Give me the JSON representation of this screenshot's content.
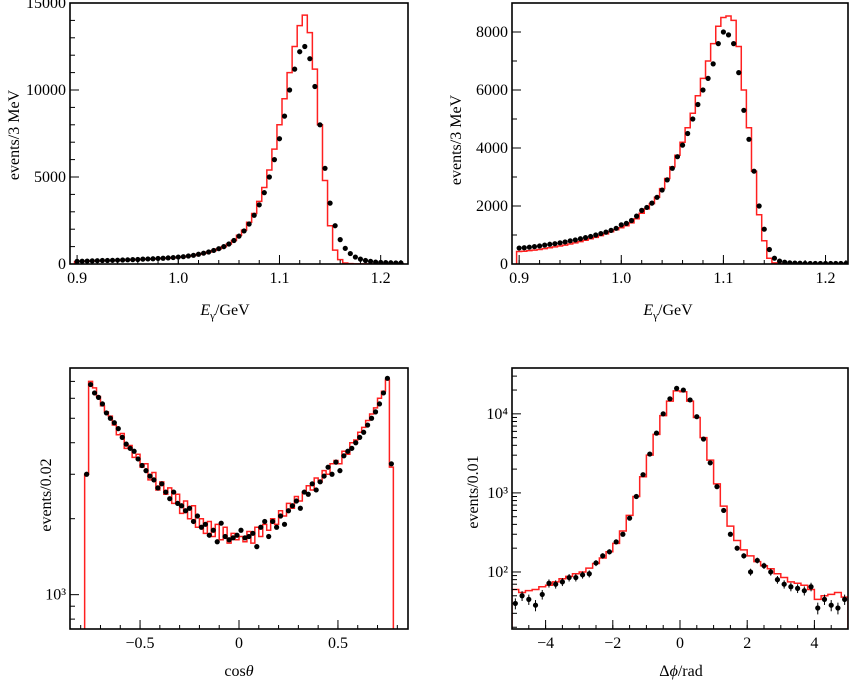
{
  "colors": {
    "data_points": "#000000",
    "mc_histogram": "#ff2020",
    "frame": "#000000"
  },
  "chart_data": [
    {
      "type": "histogram",
      "xlabel": {
        "symbol": "E",
        "subscript": "γ",
        "unit": "/GeV"
      },
      "ylabel": "events/3 MeV",
      "xlim": [
        0.893,
        1.227
      ],
      "ylim": [
        0,
        15000
      ],
      "log": false,
      "x_ticks": [
        {
          "v": 0.9,
          "label": "0.9"
        },
        {
          "v": 1.0,
          "label": "1.0"
        },
        {
          "v": 1.1,
          "label": "1.1"
        },
        {
          "v": 1.2,
          "label": "1.2"
        }
      ],
      "y_ticks": [
        {
          "v": 0,
          "label": "0"
        },
        {
          "v": 5000,
          "label": "5000"
        },
        {
          "v": 10000,
          "label": "10000"
        },
        {
          "v": 15000,
          "label": "15000"
        }
      ],
      "x": [
        0.9,
        0.905,
        0.91,
        0.915,
        0.92,
        0.925,
        0.93,
        0.935,
        0.94,
        0.945,
        0.95,
        0.955,
        0.96,
        0.965,
        0.97,
        0.975,
        0.98,
        0.985,
        0.99,
        0.995,
        1.0,
        1.005,
        1.01,
        1.015,
        1.02,
        1.025,
        1.03,
        1.035,
        1.04,
        1.045,
        1.05,
        1.055,
        1.06,
        1.065,
        1.07,
        1.075,
        1.08,
        1.085,
        1.09,
        1.095,
        1.1,
        1.105,
        1.11,
        1.115,
        1.12,
        1.125,
        1.13,
        1.135,
        1.14,
        1.145,
        1.15,
        1.155,
        1.16,
        1.165,
        1.17,
        1.175,
        1.18,
        1.185,
        1.19,
        1.195,
        1.2,
        1.205,
        1.21,
        1.215,
        1.22
      ],
      "series": [
        {
          "style": "points",
          "values": [
            150,
            160,
            170,
            180,
            190,
            200,
            200,
            210,
            220,
            230,
            240,
            250,
            260,
            280,
            290,
            300,
            320,
            330,
            350,
            370,
            400,
            420,
            460,
            500,
            560,
            620,
            690,
            780,
            880,
            1000,
            1150,
            1350,
            1600,
            1900,
            2300,
            2800,
            3400,
            4100,
            5000,
            6000,
            7200,
            8500,
            10000,
            11200,
            12200,
            12500,
            11800,
            10200,
            8000,
            5500,
            3500,
            2200,
            1400,
            900,
            600,
            400,
            280,
            200,
            150,
            110,
            90,
            80,
            70,
            60,
            60
          ]
        },
        {
          "style": "step",
          "values": [
            140,
            150,
            160,
            170,
            180,
            190,
            195,
            200,
            210,
            220,
            230,
            240,
            250,
            265,
            280,
            290,
            305,
            320,
            340,
            360,
            390,
            410,
            450,
            490,
            550,
            610,
            680,
            770,
            870,
            990,
            1150,
            1350,
            1650,
            1950,
            2400,
            2900,
            3600,
            4400,
            5400,
            6600,
            8000,
            9500,
            11000,
            12500,
            13700,
            14300,
            13300,
            11200,
            8000,
            4800,
            2200,
            800,
            250,
            60,
            20,
            10,
            5,
            5,
            5,
            5,
            5,
            5,
            5,
            5,
            5
          ]
        }
      ]
    },
    {
      "type": "histogram",
      "xlabel": {
        "symbol": "E",
        "subscript": "γ",
        "unit": "/GeV"
      },
      "ylabel": "events/3 MeV",
      "xlim": [
        0.893,
        1.222
      ],
      "ylim": [
        0,
        9000
      ],
      "log": false,
      "x_ticks": [
        {
          "v": 0.9,
          "label": "0.9"
        },
        {
          "v": 1.0,
          "label": "1.0"
        },
        {
          "v": 1.1,
          "label": "1.1"
        },
        {
          "v": 1.2,
          "label": "1.2"
        }
      ],
      "y_ticks": [
        {
          "v": 0,
          "label": "0"
        },
        {
          "v": 2000,
          "label": "2000"
        },
        {
          "v": 4000,
          "label": "4000"
        },
        {
          "v": 6000,
          "label": "6000"
        },
        {
          "v": 8000,
          "label": "8000"
        }
      ],
      "x": [
        0.9,
        0.905,
        0.91,
        0.915,
        0.92,
        0.925,
        0.93,
        0.935,
        0.94,
        0.945,
        0.95,
        0.955,
        0.96,
        0.965,
        0.97,
        0.975,
        0.98,
        0.985,
        0.99,
        0.995,
        1.0,
        1.005,
        1.01,
        1.015,
        1.02,
        1.025,
        1.03,
        1.035,
        1.04,
        1.045,
        1.05,
        1.055,
        1.06,
        1.065,
        1.07,
        1.075,
        1.08,
        1.085,
        1.09,
        1.095,
        1.1,
        1.105,
        1.11,
        1.115,
        1.12,
        1.125,
        1.13,
        1.135,
        1.14,
        1.145,
        1.15,
        1.155,
        1.16,
        1.165,
        1.17,
        1.175,
        1.18,
        1.185,
        1.19,
        1.195,
        1.2,
        1.205,
        1.21,
        1.215,
        1.22
      ],
      "series": [
        {
          "style": "points",
          "values": [
            550,
            560,
            580,
            600,
            620,
            650,
            680,
            700,
            730,
            760,
            800,
            830,
            870,
            910,
            950,
            1000,
            1050,
            1100,
            1160,
            1230,
            1350,
            1400,
            1500,
            1650,
            1850,
            1950,
            2100,
            2300,
            2550,
            2900,
            3300,
            3700,
            4100,
            4500,
            5000,
            5500,
            6000,
            6400,
            6900,
            7600,
            8000,
            7900,
            7600,
            6600,
            5300,
            4300,
            3200,
            2000,
            1200,
            500,
            200,
            100,
            60,
            40,
            30,
            25,
            20,
            20,
            20,
            20,
            20,
            20,
            20,
            20,
            20
          ]
        },
        {
          "style": "step",
          "values": [
            430,
            440,
            460,
            480,
            500,
            530,
            560,
            590,
            620,
            650,
            690,
            730,
            770,
            820,
            870,
            920,
            980,
            1040,
            1110,
            1180,
            1250,
            1320,
            1420,
            1560,
            1750,
            1900,
            2080,
            2300,
            2600,
            2950,
            3350,
            3750,
            4200,
            4700,
            5200,
            5800,
            6400,
            7000,
            7600,
            8200,
            8500,
            8550,
            8400,
            7500,
            6000,
            4700,
            3200,
            1700,
            800,
            200,
            40,
            10,
            0,
            0,
            0,
            0,
            0,
            0,
            0,
            0,
            0,
            0,
            0,
            0,
            0
          ]
        }
      ]
    },
    {
      "type": "histogram",
      "xlabel": {
        "prefix": "cos",
        "symbol": "θ"
      },
      "ylabel": "events/0.02",
      "xlim": [
        -0.854,
        0.854
      ],
      "ylim": [
        731,
        7910
      ],
      "log": true,
      "x_ticks": [
        {
          "v": -0.5,
          "label": "−0.5"
        },
        {
          "v": 0,
          "label": "0"
        },
        {
          "v": 0.5,
          "label": "0.5"
        }
      ],
      "y_ticks": [
        {
          "v": 1000,
          "label": "10³"
        }
      ],
      "x": [
        -0.77,
        -0.75,
        -0.73,
        -0.71,
        -0.69,
        -0.67,
        -0.65,
        -0.63,
        -0.61,
        -0.59,
        -0.57,
        -0.55,
        -0.53,
        -0.51,
        -0.49,
        -0.47,
        -0.45,
        -0.43,
        -0.41,
        -0.39,
        -0.37,
        -0.35,
        -0.33,
        -0.31,
        -0.29,
        -0.27,
        -0.25,
        -0.23,
        -0.21,
        -0.19,
        -0.17,
        -0.15,
        -0.13,
        -0.11,
        -0.09,
        -0.07,
        -0.05,
        -0.03,
        -0.01,
        0.01,
        0.03,
        0.05,
        0.07,
        0.09,
        0.11,
        0.13,
        0.15,
        0.17,
        0.19,
        0.21,
        0.23,
        0.25,
        0.27,
        0.29,
        0.31,
        0.33,
        0.35,
        0.37,
        0.39,
        0.41,
        0.43,
        0.45,
        0.47,
        0.49,
        0.51,
        0.53,
        0.55,
        0.57,
        0.59,
        0.61,
        0.63,
        0.65,
        0.67,
        0.69,
        0.71,
        0.73,
        0.75,
        0.77
      ],
      "series": [
        {
          "style": "points",
          "values": [
            3000,
            6800,
            6300,
            6050,
            5700,
            5250,
            5000,
            4800,
            4550,
            4200,
            3950,
            3800,
            3700,
            3450,
            3250,
            3100,
            2950,
            2850,
            2650,
            2750,
            2550,
            2400,
            2550,
            2300,
            2250,
            2150,
            2200,
            1950,
            2050,
            1850,
            1900,
            1720,
            1800,
            1620,
            1920,
            1700,
            1650,
            1680,
            1720,
            1800,
            1680,
            1700,
            1750,
            1550,
            1850,
            1950,
            1700,
            1950,
            1850,
            2050,
            1900,
            2150,
            2250,
            2350,
            2200,
            2550,
            2500,
            2750,
            2600,
            2800,
            2950,
            3200,
            3000,
            3350,
            3100,
            3550,
            3700,
            3800,
            4000,
            4200,
            4400,
            4700,
            5000,
            5300,
            5700,
            6300,
            7200,
            3300
          ]
        },
        {
          "style": "step",
          "values": [
            3000,
            7000,
            6600,
            6100,
            5600,
            5300,
            5100,
            4700,
            4300,
            4350,
            3800,
            3900,
            3500,
            3600,
            3200,
            3300,
            2850,
            3050,
            2600,
            2800,
            2500,
            2650,
            2300,
            2500,
            2100,
            2350,
            2000,
            2250,
            1850,
            2000,
            1750,
            1950,
            1700,
            1900,
            1650,
            1850,
            1600,
            1750,
            1650,
            1700,
            1620,
            1780,
            1600,
            1850,
            1700,
            1900,
            1800,
            2000,
            1900,
            2150,
            2050,
            2300,
            2200,
            2450,
            2350,
            2550,
            2700,
            2600,
            2900,
            2800,
            3100,
            3000,
            3300,
            3400,
            3300,
            3700,
            3600,
            4000,
            4100,
            4400,
            4600,
            4900,
            5200,
            5500,
            6000,
            6400,
            7100,
            3200
          ]
        }
      ]
    },
    {
      "type": "histogram",
      "xlabel": {
        "prefix": "Δ",
        "symbol": "ϕ",
        "unit": "/rad"
      },
      "ylabel": "events/0.01",
      "xlim": [
        -5,
        5
      ],
      "ylim": [
        19,
        38000
      ],
      "log": true,
      "x_ticks": [
        {
          "v": -4,
          "label": "−4"
        },
        {
          "v": -2,
          "label": "−2"
        },
        {
          "v": 0,
          "label": "0"
        },
        {
          "v": 2,
          "label": "2"
        },
        {
          "v": 4,
          "label": "4"
        }
      ],
      "y_ticks": [
        {
          "v": 100,
          "label": "10²"
        },
        {
          "v": 1000,
          "label": "10³"
        },
        {
          "v": 10000,
          "label": "10⁴"
        }
      ],
      "x": [
        -4.9,
        -4.7,
        -4.5,
        -4.3,
        -4.1,
        -3.9,
        -3.7,
        -3.5,
        -3.3,
        -3.1,
        -2.9,
        -2.7,
        -2.5,
        -2.3,
        -2.1,
        -1.9,
        -1.7,
        -1.5,
        -1.3,
        -1.1,
        -0.9,
        -0.7,
        -0.5,
        -0.3,
        -0.1,
        0.1,
        0.3,
        0.5,
        0.7,
        0.9,
        1.1,
        1.3,
        1.5,
        1.7,
        1.9,
        2.1,
        2.3,
        2.5,
        2.7,
        2.9,
        3.1,
        3.3,
        3.5,
        3.7,
        3.9,
        4.1,
        4.3,
        4.5,
        4.7,
        4.9
      ],
      "series": [
        {
          "style": "points_with_errors",
          "values": [
            40,
            50,
            45,
            38,
            52,
            72,
            70,
            75,
            85,
            85,
            92,
            95,
            130,
            160,
            180,
            240,
            300,
            480,
            900,
            1700,
            3100,
            5700,
            10000,
            15500,
            21000,
            20000,
            15000,
            9200,
            4800,
            2400,
            1200,
            600,
            300,
            200,
            160,
            100,
            140,
            120,
            100,
            80,
            70,
            65,
            62,
            58,
            65,
            35,
            45,
            38,
            35,
            45
          ]
        },
        {
          "style": "step",
          "values": [
            60,
            55,
            58,
            60,
            65,
            68,
            75,
            82,
            88,
            95,
            100,
            112,
            128,
            150,
            180,
            230,
            330,
            520,
            900,
            1600,
            3000,
            5500,
            9500,
            14500,
            19500,
            19000,
            14500,
            9000,
            5000,
            2600,
            1300,
            680,
            380,
            250,
            190,
            160,
            135,
            120,
            110,
            95,
            85,
            75,
            72,
            68,
            60,
            45,
            50,
            52,
            55,
            48
          ]
        }
      ]
    }
  ]
}
